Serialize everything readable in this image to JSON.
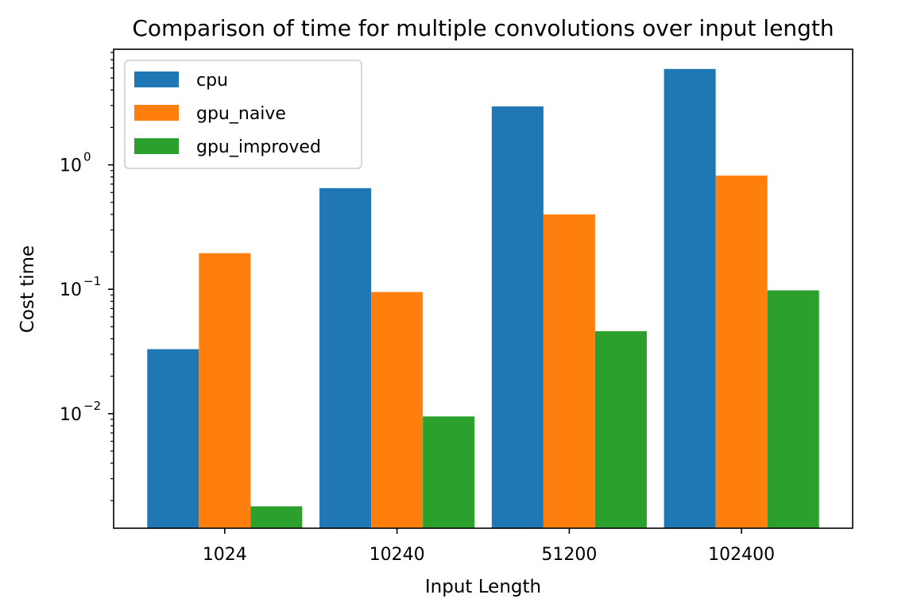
{
  "chart_data": {
    "type": "bar",
    "title": "Comparison of time for multiple convolutions over input length",
    "xlabel": "Input Length",
    "ylabel": "Cost time",
    "yscale": "log",
    "ylim": [
      0.0012,
      8.5
    ],
    "categories": [
      "1024",
      "10240",
      "51200",
      "102400"
    ],
    "series": [
      {
        "name": "cpu",
        "color": "#1f77b4",
        "values": [
          0.033,
          0.65,
          2.95,
          5.9
        ]
      },
      {
        "name": "gpu_naive",
        "color": "#ff7f0e",
        "values": [
          0.195,
          0.095,
          0.4,
          0.82
        ]
      },
      {
        "name": "gpu_improved",
        "color": "#2ca02c",
        "values": [
          0.0018,
          0.0095,
          0.046,
          0.098
        ]
      }
    ],
    "yticks": [
      {
        "value": 1,
        "mantissa": "10",
        "exponent": "0"
      },
      {
        "value": 0.1,
        "mantissa": "10",
        "exponent": "−1"
      },
      {
        "value": 0.01,
        "mantissa": "10",
        "exponent": "−2"
      }
    ],
    "legend": {
      "position": "top-left"
    },
    "grid": false
  }
}
